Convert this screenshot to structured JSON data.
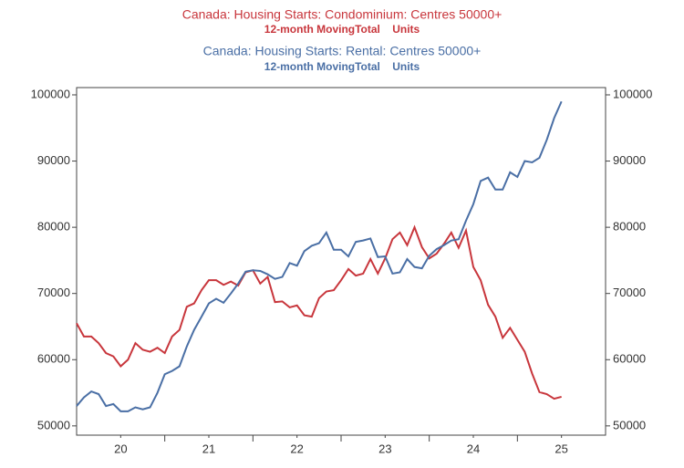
{
  "chart_data": {
    "type": "line",
    "series": [
      {
        "name": "Canada: Housing Starts: Condominium: Centres 50000+",
        "subtitle": "12-month MovingTotal    Units",
        "color": "#c8363c",
        "values": [
          65500,
          63500,
          63500,
          62500,
          61000,
          60500,
          59000,
          60000,
          62500,
          61500,
          61200,
          61800,
          61000,
          63500,
          64500,
          68000,
          68500,
          70500,
          72000,
          72000,
          71300,
          71800,
          71200,
          73200,
          73500,
          71500,
          72500,
          68700,
          68800,
          67900,
          68200,
          66700,
          66500,
          69300,
          70300,
          70500,
          72000,
          73700,
          72700,
          73000,
          75200,
          73000,
          75300,
          78200,
          79200,
          77300,
          80000,
          77000,
          75300,
          76000,
          77500,
          79200,
          76900,
          79500,
          74000,
          72000,
          68300,
          66500,
          63300,
          64800,
          63000,
          61200,
          57900,
          55100,
          54800,
          54100,
          54400
        ]
      },
      {
        "name": "Canada: Housing Starts: Rental: Centres 50000+",
        "subtitle": "12-month MovingTotal    Units",
        "color": "#4a6fa5",
        "values": [
          53000,
          54300,
          55200,
          54800,
          53000,
          53300,
          52200,
          52200,
          52800,
          52500,
          52800,
          55000,
          57800,
          58300,
          59000,
          62000,
          64500,
          66500,
          68500,
          69200,
          68600,
          70000,
          71500,
          73300,
          73500,
          73400,
          72900,
          72200,
          72500,
          74600,
          74200,
          76400,
          77200,
          77600,
          79200,
          76600,
          76600,
          75600,
          77800,
          78000,
          78300,
          75500,
          75600,
          73000,
          73200,
          75200,
          74000,
          73800,
          75700,
          76700,
          77300,
          78000,
          78200,
          81000,
          83500,
          87000,
          87500,
          85700,
          85700,
          88300,
          87600,
          90000,
          89800,
          90500,
          93200,
          96500,
          99000
        ]
      }
    ],
    "x": [
      20,
      20.083,
      20.167,
      20.25,
      20.333,
      20.417,
      20.5,
      20.583,
      20.667,
      20.75,
      20.833,
      20.917,
      21,
      21.083,
      21.167,
      21.25,
      21.333,
      21.417,
      21.5,
      21.583,
      21.667,
      21.75,
      21.833,
      21.917,
      22,
      22.083,
      22.167,
      22.25,
      22.333,
      22.417,
      22.5,
      22.583,
      22.667,
      22.75,
      22.833,
      22.917,
      23,
      23.083,
      23.167,
      23.25,
      23.333,
      23.417,
      23.5,
      23.583,
      23.667,
      23.75,
      23.833,
      23.917,
      24,
      24.083,
      24.167,
      24.25,
      24.333,
      24.417,
      24.5,
      24.583,
      24.667,
      24.75,
      24.833,
      24.917,
      25,
      25.083,
      25.167,
      25.25,
      25.333,
      25.417,
      25.5
    ],
    "xlim": [
      20,
      26
    ],
    "xticks": [
      {
        "value": 20.5,
        "label": "20"
      },
      {
        "value": 21.5,
        "label": "21"
      },
      {
        "value": 22.5,
        "label": "22"
      },
      {
        "value": 23.5,
        "label": "23"
      },
      {
        "value": 24.5,
        "label": "24"
      },
      {
        "value": 25.5,
        "label": "25"
      }
    ],
    "xtick_marks": [
      21,
      22,
      23,
      24,
      25
    ],
    "ylim": [
      48600,
      101100
    ],
    "yticks": [
      50000,
      60000,
      70000,
      80000,
      90000,
      100000
    ],
    "y2lim": [
      48600,
      101100
    ],
    "y2ticks": [
      50000,
      60000,
      70000,
      80000,
      90000,
      100000
    ]
  }
}
